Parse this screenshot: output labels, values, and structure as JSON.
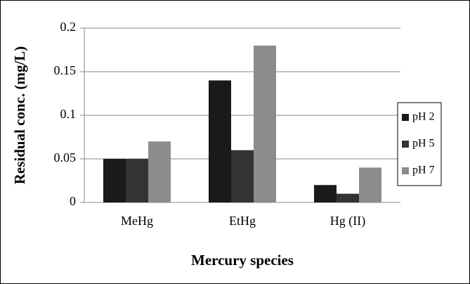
{
  "chart_data": {
    "type": "bar",
    "categories": [
      "MeHg",
      "EtHg",
      "Hg (II)"
    ],
    "series": [
      {
        "name": "pH 2",
        "color": "#1a1a1a",
        "values": [
          0.05,
          0.14,
          0.02
        ]
      },
      {
        "name": "pH 5",
        "color": "#333333",
        "values": [
          0.05,
          0.06,
          0.01
        ]
      },
      {
        "name": "pH 7",
        "color": "#8c8c8c",
        "values": [
          0.07,
          0.18,
          0.04
        ]
      }
    ],
    "ylim": [
      0,
      0.2
    ],
    "yticks": [
      0,
      0.05,
      0.1,
      0.15,
      0.2
    ],
    "grid": true,
    "ylabel": "Residual conc. (mg/L)",
    "xlabel": "Mercury species",
    "legend": "right"
  }
}
